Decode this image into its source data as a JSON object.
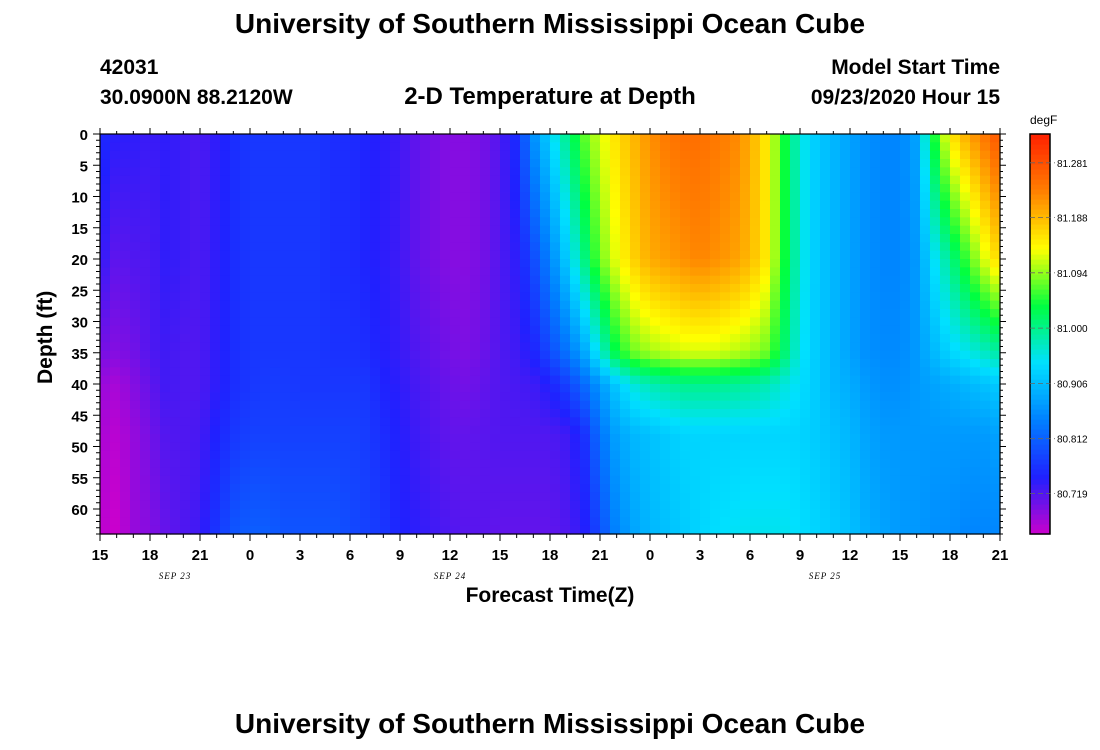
{
  "page": {
    "title_top": "University of Southern Mississippi Ocean Cube",
    "title_bottom": "University of Southern Mississippi Ocean Cube",
    "station_id": "42031",
    "station_coords": "30.0900N 88.2120W",
    "model_start_label": "Model Start Time",
    "model_start_value": "09/23/2020 Hour 15"
  },
  "chart_data": {
    "type": "heatmap",
    "title": "2-D Temperature at Depth",
    "xlabel": "Forecast Time(Z)",
    "ylabel": "Depth (ft)",
    "units": "degF",
    "x_tick_labels": [
      "15",
      "18",
      "21",
      "0",
      "3",
      "6",
      "9",
      "12",
      "15",
      "18",
      "21",
      "0",
      "3",
      "6",
      "9",
      "12",
      "15",
      "18",
      "21"
    ],
    "x_hours_since_start": [
      0,
      3,
      6,
      9,
      12,
      15,
      18,
      21,
      24,
      27,
      30,
      33,
      36,
      39,
      42,
      45,
      48,
      51,
      54
    ],
    "date_labels": [
      {
        "label": "SEP 23",
        "hour": 4.5
      },
      {
        "label": "SEP 24",
        "hour": 21
      },
      {
        "label": "SEP 25",
        "hour": 43.5
      }
    ],
    "y_tick_labels": [
      "0",
      "5",
      "10",
      "15",
      "20",
      "25",
      "30",
      "35",
      "40",
      "45",
      "50",
      "55",
      "60"
    ],
    "y_ticks": [
      0,
      5,
      10,
      15,
      20,
      25,
      30,
      35,
      40,
      45,
      50,
      55,
      60
    ],
    "ylim": [
      0,
      64
    ],
    "xlim": [
      0,
      54
    ],
    "colorbar": {
      "labels": [
        "81.281",
        "81.188",
        "81.094",
        "81.000",
        "80.906",
        "80.812",
        "80.719"
      ],
      "values": [
        81.281,
        81.188,
        81.094,
        81.0,
        80.906,
        80.812,
        80.719
      ],
      "vmin": 80.65,
      "vmax": 81.33,
      "colors": [
        "#cc00cc",
        "#2020ff",
        "#0080ff",
        "#00e0ff",
        "#00ff40",
        "#ffff00",
        "#ff8000",
        "#ff2000"
      ]
    },
    "depth_levels": [
      0,
      20,
      35,
      40,
      48,
      64
    ],
    "times": [
      0,
      1,
      2,
      3,
      4,
      5,
      6,
      7,
      8,
      9,
      10,
      11,
      12,
      13,
      14,
      15,
      16,
      17,
      18,
      19,
      20,
      21,
      22,
      23,
      24,
      25,
      26,
      27,
      28,
      29,
      30,
      31,
      32,
      33,
      34,
      35,
      36,
      37,
      38,
      39,
      40,
      41,
      42,
      43,
      44,
      45,
      46,
      47,
      48,
      49,
      50,
      51,
      52,
      53,
      54
    ],
    "values": [
      [
        80.76,
        80.74,
        80.7,
        80.68,
        80.67,
        80.66
      ],
      [
        80.74,
        80.71,
        80.69,
        80.67,
        80.66,
        80.65
      ],
      [
        80.74,
        80.72,
        80.7,
        80.69,
        80.68,
        80.68
      ],
      [
        80.73,
        80.72,
        80.72,
        80.71,
        80.7,
        80.69
      ],
      [
        80.74,
        80.74,
        80.73,
        80.73,
        80.72,
        80.71
      ],
      [
        80.73,
        80.73,
        80.72,
        80.72,
        80.72,
        80.72
      ],
      [
        80.72,
        80.72,
        80.72,
        80.72,
        80.725,
        80.73
      ],
      [
        80.74,
        80.74,
        80.74,
        80.74,
        80.75,
        80.77
      ],
      [
        80.76,
        80.76,
        80.76,
        80.76,
        80.77,
        80.8
      ],
      [
        80.77,
        80.77,
        80.77,
        80.77,
        80.78,
        80.81
      ],
      [
        80.77,
        80.77,
        80.77,
        80.775,
        80.78,
        80.81
      ],
      [
        80.77,
        80.77,
        80.77,
        80.775,
        80.78,
        80.8
      ],
      [
        80.77,
        80.77,
        80.77,
        80.77,
        80.78,
        80.8
      ],
      [
        80.77,
        80.77,
        80.77,
        80.77,
        80.78,
        80.8
      ],
      [
        80.76,
        80.76,
        80.765,
        80.77,
        80.78,
        80.8
      ],
      [
        80.76,
        80.76,
        80.765,
        80.77,
        80.78,
        80.79
      ],
      [
        80.75,
        80.75,
        80.76,
        80.77,
        80.775,
        80.78
      ],
      [
        80.74,
        80.74,
        80.745,
        80.75,
        80.76,
        80.77
      ],
      [
        80.73,
        80.73,
        80.735,
        80.74,
        80.745,
        80.75
      ],
      [
        80.71,
        80.71,
        80.72,
        80.725,
        80.73,
        80.74
      ],
      [
        80.7,
        80.7,
        80.71,
        80.715,
        80.72,
        80.73
      ],
      [
        80.69,
        80.69,
        80.7,
        80.705,
        80.71,
        80.72
      ],
      [
        80.69,
        80.69,
        80.695,
        80.7,
        80.71,
        80.715
      ],
      [
        80.7,
        80.7,
        80.705,
        80.71,
        80.715,
        80.715
      ],
      [
        80.72,
        80.72,
        80.72,
        80.72,
        80.72,
        80.71
      ],
      [
        80.76,
        80.74,
        80.73,
        80.725,
        80.72,
        80.71
      ],
      [
        80.86,
        80.79,
        80.75,
        80.73,
        80.72,
        80.71
      ],
      [
        80.93,
        80.85,
        80.79,
        80.75,
        80.72,
        80.71
      ],
      [
        81.0,
        80.92,
        80.83,
        80.78,
        80.73,
        80.72
      ],
      [
        81.07,
        81.0,
        80.88,
        80.82,
        80.76,
        80.74
      ],
      [
        81.12,
        81.08,
        80.96,
        80.87,
        80.83,
        80.79
      ],
      [
        81.16,
        81.13,
        81.04,
        80.92,
        80.88,
        80.85
      ],
      [
        81.19,
        81.17,
        81.08,
        80.96,
        80.9,
        80.88
      ],
      [
        81.22,
        81.2,
        81.1,
        80.98,
        80.91,
        80.9
      ],
      [
        81.24,
        81.21,
        81.11,
        80.99,
        80.92,
        80.91
      ],
      [
        81.25,
        81.22,
        81.12,
        81.0,
        80.93,
        80.92
      ],
      [
        81.25,
        81.23,
        81.12,
        81.0,
        80.93,
        80.93
      ],
      [
        81.24,
        81.22,
        81.12,
        81.0,
        80.93,
        80.94
      ],
      [
        81.23,
        81.21,
        81.11,
        80.995,
        80.93,
        80.945
      ],
      [
        81.2,
        81.19,
        81.1,
        80.99,
        80.93,
        80.95
      ],
      [
        81.15,
        81.15,
        81.08,
        80.98,
        80.93,
        80.95
      ],
      [
        81.05,
        81.05,
        81.02,
        80.96,
        80.93,
        80.95
      ],
      [
        80.96,
        80.96,
        80.95,
        80.94,
        80.93,
        80.94
      ],
      [
        80.92,
        80.92,
        80.92,
        80.92,
        80.92,
        80.93
      ],
      [
        80.9,
        80.9,
        80.9,
        80.9,
        80.91,
        80.92
      ],
      [
        80.88,
        80.88,
        80.88,
        80.89,
        80.9,
        80.91
      ],
      [
        80.86,
        80.86,
        80.86,
        80.87,
        80.88,
        80.89
      ],
      [
        80.85,
        80.85,
        80.855,
        80.86,
        80.87,
        80.88
      ],
      [
        80.85,
        80.85,
        80.855,
        80.86,
        80.87,
        80.87
      ],
      [
        80.88,
        80.87,
        80.87,
        80.87,
        80.87,
        80.87
      ],
      [
        81.04,
        80.94,
        80.9,
        80.88,
        80.87,
        80.86
      ],
      [
        81.15,
        81.0,
        80.93,
        80.89,
        80.87,
        80.86
      ],
      [
        81.2,
        81.06,
        80.95,
        80.9,
        80.87,
        80.85
      ],
      [
        81.24,
        81.12,
        80.97,
        80.91,
        80.87,
        80.85
      ],
      [
        81.28,
        81.17,
        80.99,
        80.92,
        80.88,
        80.85
      ]
    ]
  }
}
